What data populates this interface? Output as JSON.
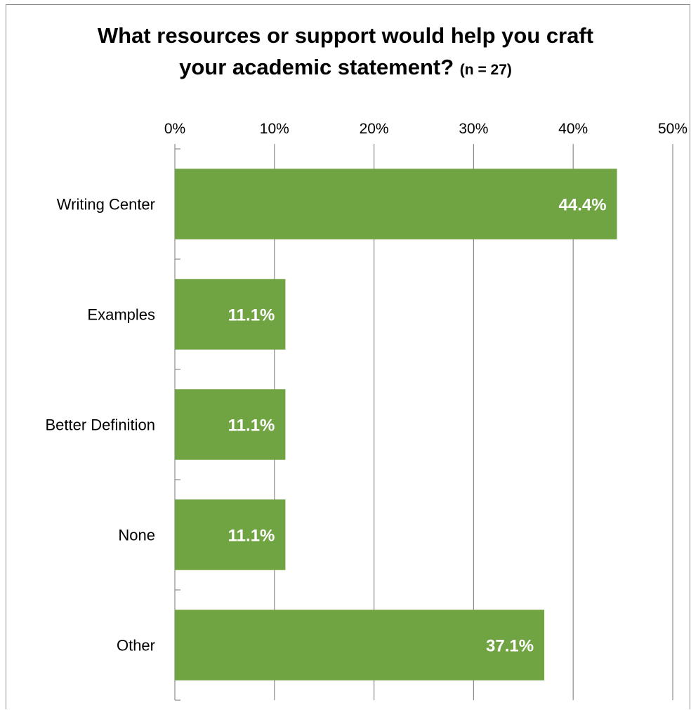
{
  "chart_data": {
    "type": "bar",
    "orientation": "horizontal",
    "title": "What resources or support would help you craft your academic statement?",
    "title_line1": "What resources or support would help you craft",
    "title_line2": "your academic statement?",
    "subtitle": "(n = 27)",
    "categories": [
      "Writing Center",
      "Examples",
      "Better Definition",
      "None",
      "Other"
    ],
    "values": [
      44.4,
      11.1,
      11.1,
      11.1,
      37.1
    ],
    "value_labels": [
      "44.4%",
      "11.1%",
      "11.1%",
      "11.1%",
      "37.1%"
    ],
    "xlim": [
      0,
      50
    ],
    "ticks": [
      "0%",
      "10%",
      "20%",
      "30%",
      "40%",
      "50%"
    ],
    "tick_values": [
      0,
      10,
      20,
      30,
      40,
      50
    ],
    "axis_position": "top",
    "grid": true,
    "legend": "none",
    "bar_color": "#70a442",
    "grid_color": "#8c8c8c"
  }
}
